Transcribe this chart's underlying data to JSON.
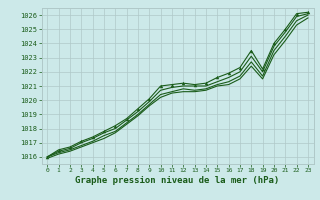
{
  "title": "Graphe pression niveau de la mer (hPa)",
  "bg_color": "#cce9e9",
  "grid_color": "#b0c8c8",
  "line_color": "#1a5c1a",
  "marker_color": "#1a5c1a",
  "ylim": [
    1015.5,
    1026.5
  ],
  "xlim": [
    -0.5,
    23.5
  ],
  "yticks": [
    1016,
    1017,
    1018,
    1019,
    1020,
    1021,
    1022,
    1023,
    1024,
    1025,
    1026
  ],
  "xticks": [
    0,
    1,
    2,
    3,
    4,
    5,
    6,
    7,
    8,
    9,
    10,
    11,
    12,
    13,
    14,
    15,
    16,
    17,
    18,
    19,
    20,
    21,
    22,
    23
  ],
  "series": [
    [
      1016.0,
      1016.5,
      1016.7,
      1017.1,
      1017.4,
      1017.8,
      1018.2,
      1018.7,
      1019.4,
      1020.1,
      1021.0,
      1021.1,
      1021.2,
      1021.1,
      1021.2,
      1021.6,
      1021.9,
      1022.3,
      1023.5,
      1022.2,
      1024.0,
      1025.0,
      1026.1,
      1026.2
    ],
    [
      1016.0,
      1016.4,
      1016.6,
      1017.0,
      1017.3,
      1017.7,
      1018.0,
      1018.6,
      1019.2,
      1019.9,
      1020.7,
      1020.9,
      1021.0,
      1021.0,
      1021.0,
      1021.3,
      1021.6,
      1022.0,
      1023.1,
      1022.0,
      1023.8,
      1024.8,
      1025.9,
      1026.1
    ],
    [
      1016.0,
      1016.3,
      1016.5,
      1016.8,
      1017.1,
      1017.5,
      1017.8,
      1018.4,
      1019.0,
      1019.7,
      1020.4,
      1020.6,
      1020.8,
      1020.7,
      1020.8,
      1021.1,
      1021.3,
      1021.7,
      1022.7,
      1021.7,
      1023.5,
      1024.5,
      1025.6,
      1026.0
    ],
    [
      1015.9,
      1016.2,
      1016.4,
      1016.7,
      1017.0,
      1017.3,
      1017.7,
      1018.3,
      1018.9,
      1019.6,
      1020.2,
      1020.5,
      1020.6,
      1020.6,
      1020.7,
      1021.0,
      1021.1,
      1021.5,
      1022.4,
      1021.5,
      1023.2,
      1024.2,
      1025.3,
      1025.8
    ]
  ],
  "marker_series": [
    1016.0,
    1016.5,
    1016.7,
    1017.1,
    1017.4,
    1017.8,
    1018.2,
    1018.7,
    1019.4,
    1020.1,
    1021.0,
    1021.1,
    1021.2,
    1021.1,
    1021.2,
    1021.6,
    1021.9,
    1022.3,
    1023.5,
    1022.2,
    1024.0,
    1025.0,
    1026.1,
    1026.2
  ],
  "figsize": [
    3.2,
    2.0
  ],
  "dpi": 100
}
